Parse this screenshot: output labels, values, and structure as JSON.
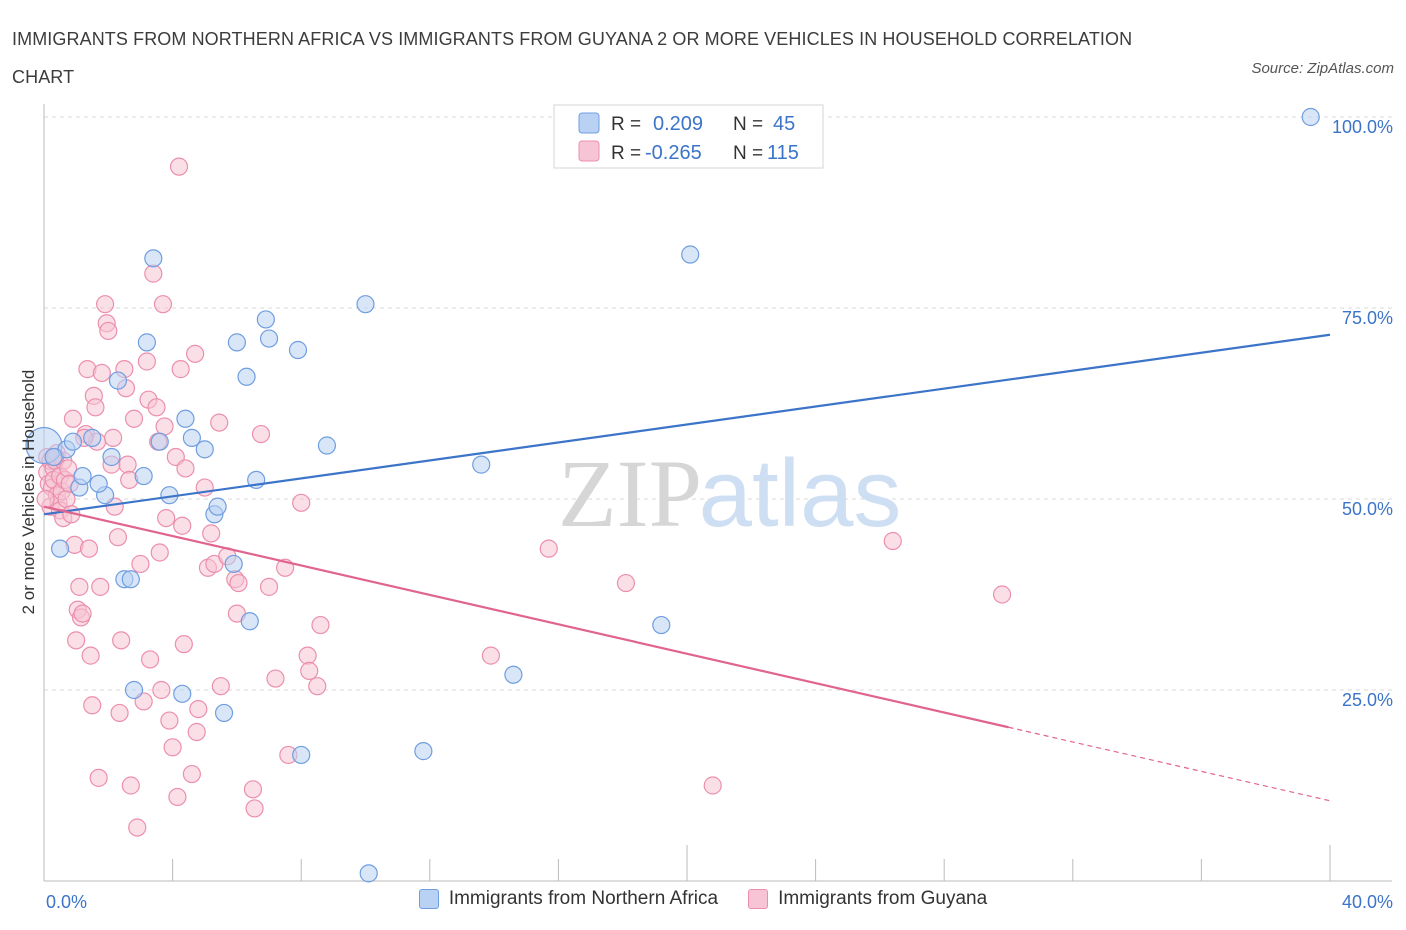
{
  "title": "IMMIGRANTS FROM NORTHERN AFRICA VS IMMIGRANTS FROM GUYANA 2 OR MORE VEHICLES IN HOUSEHOLD CORRELATION CHART",
  "source": "Source: ZipAtlas.com",
  "watermark": {
    "zip": "ZIP",
    "atlas": "atlas"
  },
  "colors": {
    "blue": "#3b74c8",
    "blue_fill": "#b9d2f3",
    "blue_stroke": "#6f9ee0",
    "pink": "#e0648e",
    "pink_fill": "#f6c4d4",
    "pink_stroke": "#ec8fae",
    "grid": "#d9d9d9"
  },
  "stats": [
    {
      "r_label": "R =",
      "r": "0.209",
      "n_label": "N =",
      "n": "45"
    },
    {
      "r_label": "R =",
      "r": "-0.265",
      "n_label": "N =",
      "n": "115"
    }
  ],
  "chart_data": {
    "type": "scatter",
    "title": "IMMIGRANTS FROM NORTHERN AFRICA VS IMMIGRANTS FROM GUYANA 2 OR MORE VEHICLES IN HOUSEHOLD CORRELATION CHART",
    "xlabel": "",
    "ylabel": "2 or more Vehicles in Household",
    "xlim": [
      0,
      40
    ],
    "ylim": [
      0,
      100
    ],
    "x_tick_labels": [
      "0.0%",
      "40.0%"
    ],
    "y_ticks": [
      25,
      50,
      75,
      100
    ],
    "y_tick_labels": [
      "25.0%",
      "50.0%",
      "75.0%",
      "100.0%"
    ],
    "grid": true,
    "legend_position": "bottom",
    "series": [
      {
        "name": "Immigrants from Northern Africa",
        "color": "#3b74c8",
        "r": 0.209,
        "n": 45,
        "trend": {
          "x": [
            0,
            40
          ],
          "y": [
            48.0,
            71.5
          ],
          "dashed_from": null
        },
        "points": [
          [
            0.0,
            57.0
          ],
          [
            0.5,
            43.5
          ],
          [
            0.7,
            56.5
          ],
          [
            0.9,
            57.5
          ],
          [
            1.1,
            51.5
          ],
          [
            1.2,
            53.0
          ],
          [
            1.5,
            58.0
          ],
          [
            1.9,
            50.5
          ],
          [
            2.1,
            55.5
          ],
          [
            2.3,
            65.5
          ],
          [
            2.5,
            39.5
          ],
          [
            2.7,
            39.5
          ],
          [
            2.8,
            25.0
          ],
          [
            3.1,
            53.0
          ],
          [
            3.2,
            70.5
          ],
          [
            3.4,
            81.5
          ],
          [
            3.6,
            57.5
          ],
          [
            3.9,
            50.5
          ],
          [
            4.3,
            24.5
          ],
          [
            4.4,
            60.5
          ],
          [
            4.6,
            58.0
          ],
          [
            5.0,
            56.5
          ],
          [
            5.3,
            48.0
          ],
          [
            5.4,
            49.0
          ],
          [
            5.6,
            22.0
          ],
          [
            5.9,
            41.5
          ],
          [
            6.0,
            70.5
          ],
          [
            6.3,
            66.0
          ],
          [
            6.4,
            34.0
          ],
          [
            6.6,
            52.5
          ],
          [
            6.9,
            73.5
          ],
          [
            7.0,
            71.0
          ],
          [
            7.9,
            69.5
          ],
          [
            8.0,
            16.5
          ],
          [
            8.8,
            57.0
          ],
          [
            10.0,
            75.5
          ],
          [
            10.1,
            1.0
          ],
          [
            11.8,
            17.0
          ],
          [
            13.6,
            54.5
          ],
          [
            14.6,
            27.0
          ],
          [
            19.2,
            33.5
          ],
          [
            20.1,
            82.0
          ],
          [
            39.4,
            100.0
          ],
          [
            0.3,
            55.5
          ],
          [
            1.7,
            52.0
          ]
        ]
      },
      {
        "name": "Immigrants from Guyana",
        "color": "#e0648e",
        "r": -0.265,
        "n": 115,
        "trend": {
          "x": [
            0,
            40
          ],
          "y": [
            49.0,
            10.5
          ],
          "dashed_from": 30
        },
        "points": [
          [
            0.1,
            55.5
          ],
          [
            0.1,
            53.5
          ],
          [
            0.15,
            52.0
          ],
          [
            0.2,
            55.0
          ],
          [
            0.2,
            49.0
          ],
          [
            0.25,
            51.5
          ],
          [
            0.3,
            54.0
          ],
          [
            0.3,
            52.5
          ],
          [
            0.35,
            55.0
          ],
          [
            0.4,
            56.0
          ],
          [
            0.4,
            50.5
          ],
          [
            0.45,
            49.5
          ],
          [
            0.5,
            53.0
          ],
          [
            0.5,
            48.5
          ],
          [
            0.55,
            51.0
          ],
          [
            0.6,
            55.0
          ],
          [
            0.6,
            47.5
          ],
          [
            0.65,
            52.5
          ],
          [
            0.7,
            50.0
          ],
          [
            0.75,
            54.0
          ],
          [
            0.8,
            52.0
          ],
          [
            0.85,
            48.0
          ],
          [
            0.9,
            60.5
          ],
          [
            0.95,
            44.0
          ],
          [
            1.0,
            31.5
          ],
          [
            1.05,
            35.5
          ],
          [
            1.1,
            38.5
          ],
          [
            1.15,
            34.5
          ],
          [
            1.2,
            35.0
          ],
          [
            1.3,
            58.5
          ],
          [
            1.35,
            67.0
          ],
          [
            1.4,
            43.5
          ],
          [
            1.45,
            29.5
          ],
          [
            1.5,
            23.0
          ],
          [
            1.55,
            63.5
          ],
          [
            1.6,
            62.0
          ],
          [
            1.65,
            57.5
          ],
          [
            1.7,
            13.5
          ],
          [
            1.75,
            38.5
          ],
          [
            1.8,
            66.5
          ],
          [
            1.9,
            75.5
          ],
          [
            1.95,
            73.0
          ],
          [
            2.0,
            72.0
          ],
          [
            2.1,
            54.5
          ],
          [
            2.15,
            58.0
          ],
          [
            2.2,
            49.0
          ],
          [
            2.3,
            45.0
          ],
          [
            2.35,
            22.0
          ],
          [
            2.4,
            31.5
          ],
          [
            2.5,
            67.0
          ],
          [
            2.55,
            64.5
          ],
          [
            2.6,
            54.5
          ],
          [
            2.65,
            52.5
          ],
          [
            2.7,
            12.5
          ],
          [
            2.8,
            60.5
          ],
          [
            2.9,
            7.0
          ],
          [
            3.0,
            41.5
          ],
          [
            3.1,
            23.5
          ],
          [
            3.2,
            68.0
          ],
          [
            3.25,
            63.0
          ],
          [
            3.3,
            29.0
          ],
          [
            3.4,
            79.5
          ],
          [
            3.5,
            62.0
          ],
          [
            3.55,
            57.5
          ],
          [
            3.6,
            43.0
          ],
          [
            3.65,
            25.0
          ],
          [
            3.7,
            75.5
          ],
          [
            3.75,
            59.5
          ],
          [
            3.8,
            47.5
          ],
          [
            3.9,
            21.0
          ],
          [
            4.0,
            17.5
          ],
          [
            4.1,
            55.5
          ],
          [
            4.15,
            11.0
          ],
          [
            4.2,
            93.5
          ],
          [
            4.25,
            67.0
          ],
          [
            4.3,
            46.5
          ],
          [
            4.35,
            31.0
          ],
          [
            4.4,
            54.0
          ],
          [
            4.6,
            14.0
          ],
          [
            4.7,
            69.0
          ],
          [
            4.75,
            19.5
          ],
          [
            4.8,
            22.5
          ],
          [
            5.0,
            51.5
          ],
          [
            5.1,
            41.0
          ],
          [
            5.2,
            45.5
          ],
          [
            5.3,
            41.5
          ],
          [
            5.45,
            60.0
          ],
          [
            5.5,
            25.5
          ],
          [
            5.7,
            42.5
          ],
          [
            5.95,
            39.5
          ],
          [
            6.0,
            35.0
          ],
          [
            6.05,
            39.0
          ],
          [
            6.5,
            12.0
          ],
          [
            6.55,
            9.5
          ],
          [
            6.75,
            58.5
          ],
          [
            7.0,
            38.5
          ],
          [
            7.2,
            26.5
          ],
          [
            7.5,
            41.0
          ],
          [
            7.6,
            16.5
          ],
          [
            8.0,
            49.5
          ],
          [
            8.2,
            29.5
          ],
          [
            8.25,
            27.5
          ],
          [
            8.5,
            25.5
          ],
          [
            8.6,
            33.5
          ],
          [
            13.9,
            29.5
          ],
          [
            15.7,
            43.5
          ],
          [
            18.1,
            39.0
          ],
          [
            20.8,
            12.5
          ],
          [
            26.4,
            44.5
          ],
          [
            29.8,
            37.5
          ],
          [
            0.05,
            50.0
          ],
          [
            0.35,
            55.5
          ],
          [
            1.25,
            58.0
          ]
        ]
      }
    ]
  }
}
